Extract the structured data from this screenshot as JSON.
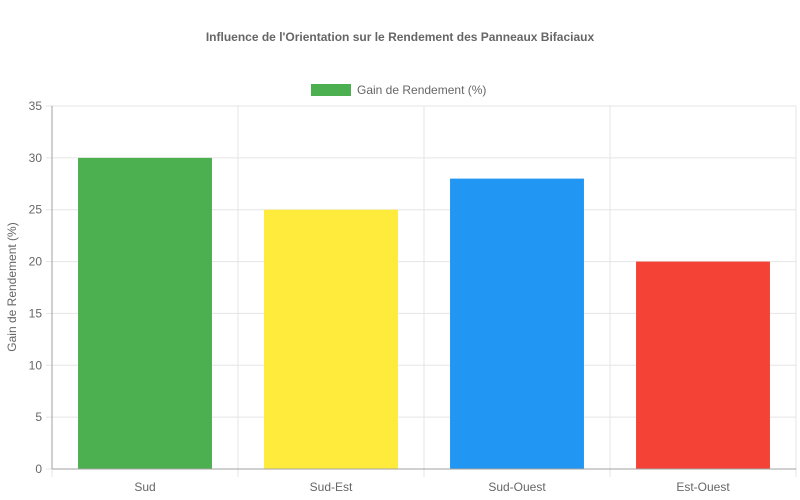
{
  "chart_data": {
    "type": "bar",
    "title": "Influence de l'Orientation sur le Rendement des Panneaux Bifaciaux",
    "categories": [
      "Sud",
      "Sud-Est",
      "Sud-Ouest",
      "Est-Ouest"
    ],
    "series": [
      {
        "name": "Gain de Rendement (%)",
        "values": [
          30,
          25,
          28,
          20
        ],
        "colors": [
          "#4caf50",
          "#ffeb3b",
          "#2196f3",
          "#f44336"
        ]
      }
    ],
    "xlabel": "",
    "ylabel": "Gain de Rendement (%)",
    "ylim": [
      0,
      35
    ],
    "yticks": [
      0,
      5,
      10,
      15,
      20,
      25,
      30,
      35
    ],
    "grid": true,
    "legend_position": "top-center",
    "legend_color": "#4caf50"
  }
}
